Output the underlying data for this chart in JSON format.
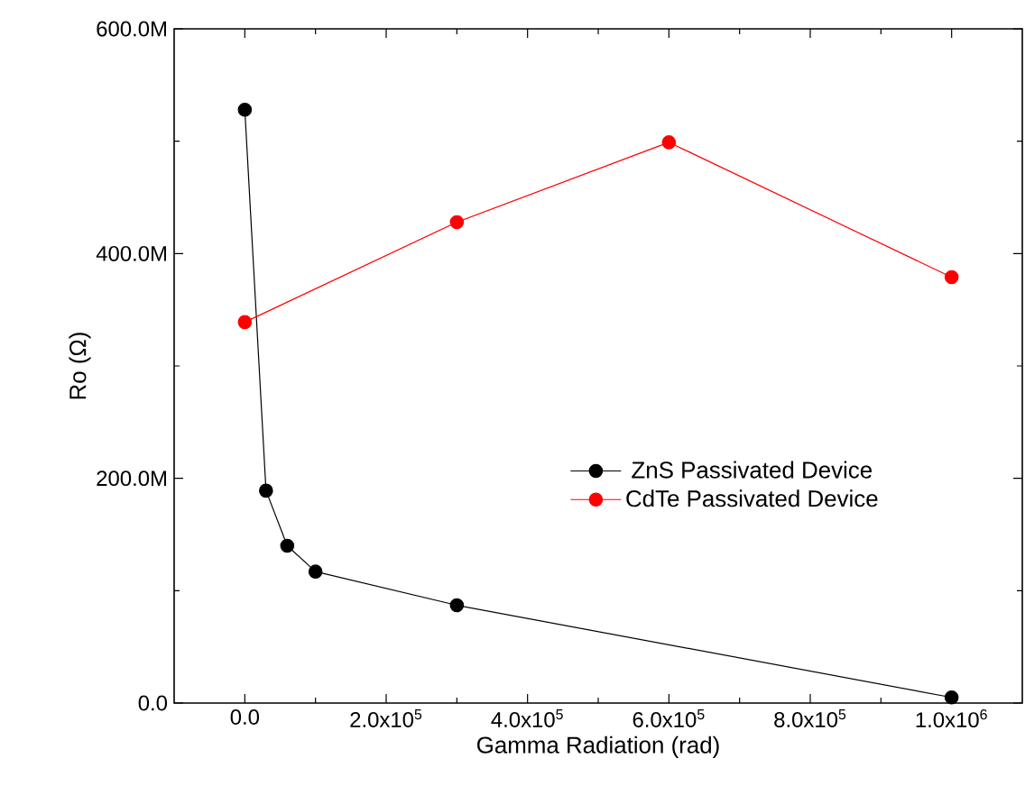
{
  "chart_data": {
    "type": "line",
    "xlabel": "Gamma Radiation (rad)",
    "ylabel": "Ro (Ω)",
    "xlim": [
      -100000,
      1100000
    ],
    "ylim": [
      0,
      600000000
    ],
    "xticks": [
      {
        "value": 0,
        "label": "0.0"
      },
      {
        "value": 200000,
        "label": "2.0x10$^{5}$"
      },
      {
        "value": 400000,
        "label": "4.0x10$^{5}$"
      },
      {
        "value": 600000,
        "label": "6.0x10$^{5}$"
      },
      {
        "value": 800000,
        "label": "8.0x10$^{5}$"
      },
      {
        "value": 1000000,
        "label": "1.0x10$^{6}$"
      }
    ],
    "yticks": [
      {
        "value": 0,
        "label": "0.0"
      },
      {
        "value": 200000000,
        "label": "200.0M"
      },
      {
        "value": 400000000,
        "label": "400.0M"
      },
      {
        "value": 600000000,
        "label": "600.0M"
      }
    ],
    "grid": false,
    "legend": "center right",
    "marker": "circle",
    "line_style": "solid",
    "series": [
      {
        "name": "ZnS Passivated Device",
        "color": "#000000",
        "x": [
          0,
          30000,
          60000,
          100000,
          300000,
          1000000
        ],
        "values": [
          528000000,
          189000000,
          140000000,
          117000000,
          87000000,
          5000000
        ]
      },
      {
        "name": "CdTe Passivated Device",
        "color": "#ff0000",
        "x": [
          0,
          300000,
          600000,
          1000000
        ],
        "values": [
          339000000,
          428000000,
          499000000,
          379000000
        ]
      }
    ]
  }
}
